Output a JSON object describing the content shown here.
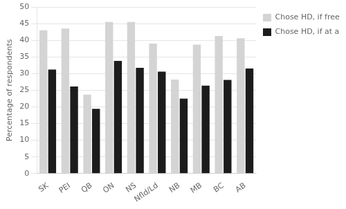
{
  "chart_data": {
    "type": "bar",
    "categories": [
      "SK",
      "PEI",
      "QB",
      "ON",
      "NS",
      "Nfld/Ld",
      "NB",
      "MB",
      "BC",
      "AB"
    ],
    "series": [
      {
        "name": "Chose HD, if free",
        "color": "#d4d4d4",
        "values": [
          43.0,
          43.5,
          23.7,
          45.5,
          45.5,
          39.0,
          28.2,
          38.7,
          41.3,
          40.6
        ]
      },
      {
        "name": "Chose HD, if at a cost",
        "color": "#1c1c1c",
        "values": [
          31.2,
          26.1,
          19.4,
          33.8,
          31.7,
          30.6,
          22.5,
          26.4,
          28.1,
          31.5
        ]
      }
    ],
    "ylabel": "Percentage of respondents",
    "ylim": [
      0,
      50
    ],
    "yticks": [
      0,
      5,
      10,
      15,
      20,
      25,
      30,
      35,
      40,
      45,
      50
    ],
    "grid": true,
    "legend": "right"
  }
}
